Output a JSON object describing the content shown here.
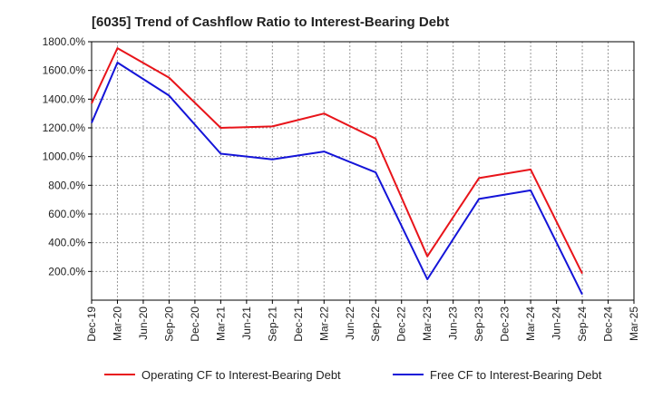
{
  "chart_data": {
    "type": "line",
    "title": "[6035]  Trend of Cashflow Ratio to Interest-Bearing Debt",
    "xlabel": "",
    "ylabel": "",
    "categories": [
      "Dec-19",
      "Mar-20",
      "Jun-20",
      "Sep-20",
      "Dec-20",
      "Mar-21",
      "Jun-21",
      "Sep-21",
      "Dec-21",
      "Mar-22",
      "Jun-22",
      "Sep-22",
      "Dec-22",
      "Mar-23",
      "Jun-23",
      "Sep-23",
      "Dec-23",
      "Mar-24",
      "Jun-24",
      "Sep-24",
      "Dec-24",
      "Mar-25"
    ],
    "y_ticks": [
      "200.0%",
      "400.0%",
      "600.0%",
      "800.0%",
      "1000.0%",
      "1200.0%",
      "1400.0%",
      "1600.0%",
      "1800.0%"
    ],
    "y_tick_values": [
      200,
      400,
      600,
      800,
      1000,
      1200,
      1400,
      1600,
      1800
    ],
    "ylim": [
      0,
      1800
    ],
    "grid": true,
    "legend_position": "bottom",
    "series": [
      {
        "name": "Operating CF to Interest-Bearing Debt",
        "color": "#e8141a",
        "values": [
          1370,
          1755,
          null,
          1550,
          null,
          1200,
          null,
          1210,
          null,
          1300,
          null,
          1125,
          null,
          305,
          null,
          850,
          null,
          910,
          null,
          185,
          null,
          null
        ]
      },
      {
        "name": "Free CF to Interest-Bearing Debt",
        "color": "#1414d8",
        "values": [
          1235,
          1655,
          null,
          1425,
          null,
          1020,
          null,
          980,
          null,
          1035,
          null,
          890,
          null,
          145,
          null,
          705,
          null,
          765,
          null,
          40,
          null,
          null
        ]
      }
    ]
  }
}
